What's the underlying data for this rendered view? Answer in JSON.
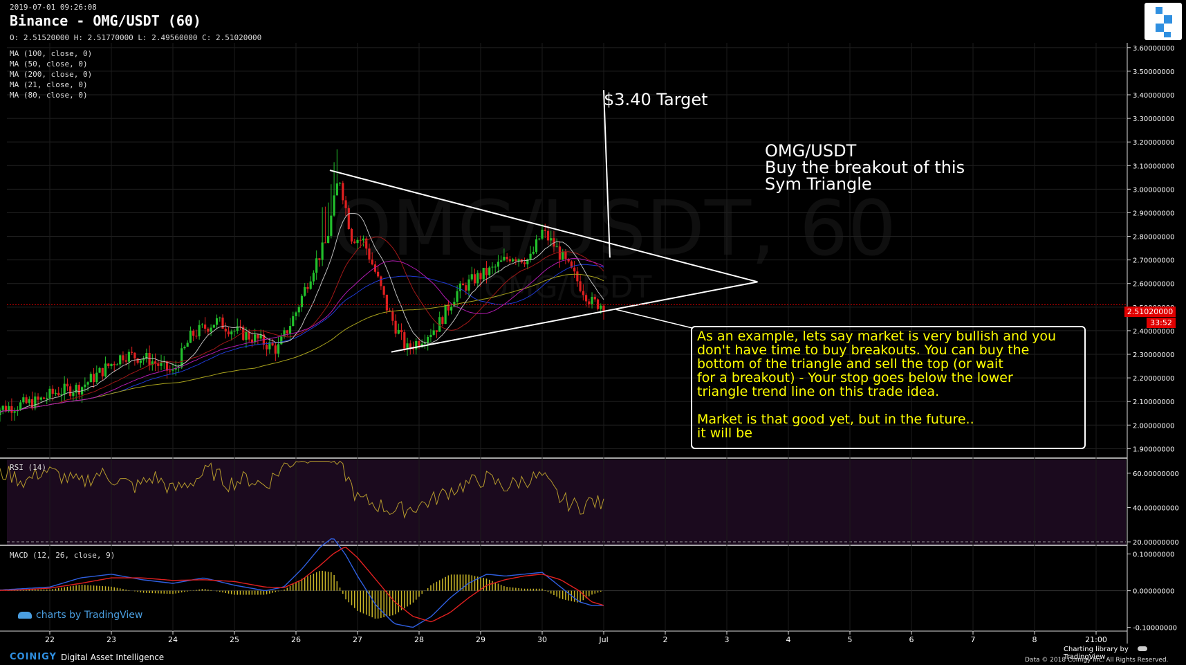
{
  "header": {
    "datetime": "2019-07-01 09:26:08",
    "title": "Binance - OMG/USDT (60)",
    "ohlc": "O: 2.51520000 H: 2.51770000 L: 2.49560000 C: 2.51020000"
  },
  "indicators": [
    "MA (100, close, 0)",
    "MA (50, close, 0)",
    "MA (200, close, 0)",
    "MA (21, close, 0)",
    "MA (80, close, 0)"
  ],
  "watermark": {
    "main": "OMG/USDT, 60",
    "sub": "OMG/USDT"
  },
  "annotations": {
    "target": "$3.40 Target",
    "idea": "OMG/USDT\nBuy the breakout of this\nSym Triangle",
    "note": "As an example, lets say market is very bullish and you\ndon't have time to buy breakouts.  You can buy the\n bottom of the triangle and sell the top (or wait\nfor a breakout) - Your stop goes below the lower\ntriangle trend line on this trade idea.\n\nMarket is that good yet, but in the future..\nit will be"
  },
  "last_price": "2.51020000",
  "countdown": "33:52",
  "rsi_label": "RSI (14)",
  "macd_label": "MACD (12, 26, close, 9)",
  "footer": {
    "brand": "COINIGY",
    "tagline": "Digital Asset Intelligence",
    "charting_library": "Charting library by",
    "tv_name": "TradingView",
    "tv_watermark": "charts by TradingView",
    "copyright": "Data © 2018   Coinigy Inc. All Rights Reserved."
  },
  "colors": {
    "background": "#000000",
    "up_candle": "#22c02c",
    "down_candle": "#e02020",
    "rsi_line": "#b59a2c",
    "macd_line": "#2f5fe0",
    "signal_line": "#e02020",
    "note_text": "#ffff00",
    "price_tag": "#e00000"
  },
  "chart_data": [
    {
      "type": "candlestick",
      "title": "Binance - OMG/USDT (60)",
      "x_tick_labels": [
        "22",
        "23",
        "24",
        "25",
        "26",
        "27",
        "28",
        "29",
        "30",
        "Jul",
        "2",
        "3",
        "4",
        "5",
        "6",
        "7",
        "8",
        "21:00"
      ],
      "y_tick_labels": [
        "1.90000000",
        "2.00000000",
        "2.10000000",
        "2.20000000",
        "2.30000000",
        "2.40000000",
        "2.50000000",
        "2.60000000",
        "2.70000000",
        "2.80000000",
        "2.90000000",
        "3.00000000",
        "3.10000000",
        "3.20000000",
        "3.30000000",
        "3.40000000",
        "3.50000000",
        "3.60000000"
      ],
      "ylim": [
        1.86,
        3.62
      ],
      "price_path_days": [
        21.0,
        21.4,
        21.8,
        22.1,
        22.5,
        22.9,
        23.2,
        23.6,
        24.0,
        24.3,
        24.7,
        25.0,
        25.4,
        25.7,
        26.0,
        26.3,
        26.5,
        26.7,
        26.9,
        27.1,
        27.3,
        27.5,
        27.8,
        28.0,
        28.3,
        28.6,
        28.9,
        29.2,
        29.5,
        29.8,
        30.0,
        30.2,
        30.4,
        30.6,
        30.8,
        31.0
      ],
      "price_path_values": [
        2.06,
        2.08,
        2.1,
        2.14,
        2.16,
        2.24,
        2.3,
        2.28,
        2.22,
        2.38,
        2.44,
        2.4,
        2.36,
        2.32,
        2.48,
        2.68,
        2.78,
        3.06,
        2.8,
        2.78,
        2.64,
        2.48,
        2.32,
        2.36,
        2.42,
        2.56,
        2.62,
        2.66,
        2.72,
        2.7,
        2.82,
        2.76,
        2.68,
        2.6,
        2.52,
        2.51
      ],
      "trend_lines": [
        {
          "name": "upper",
          "from": [
            26.55,
            3.08
          ],
          "to": [
            33.5,
            2.607
          ]
        },
        {
          "name": "lower",
          "from": [
            27.55,
            2.31
          ],
          "to": [
            33.5,
            2.607
          ]
        },
        {
          "name": "target",
          "from": [
            31.0,
            3.42
          ],
          "to": [
            31.1,
            2.71
          ]
        }
      ],
      "last_price": 2.5102
    },
    {
      "type": "line",
      "title": "RSI (14)",
      "y_tick_labels": [
        "20.00000000",
        "40.00000000",
        "60.00000000"
      ],
      "ylim": [
        18,
        68
      ],
      "x_days": [
        21.0,
        21.3,
        21.6,
        21.9,
        22.2,
        22.5,
        22.8,
        23.1,
        23.4,
        23.7,
        24.0,
        24.3,
        24.6,
        24.9,
        25.2,
        25.5,
        25.8,
        26.1,
        26.4,
        26.6,
        26.8,
        27.0,
        27.3,
        27.6,
        27.9,
        28.2,
        28.5,
        28.8,
        29.1,
        29.4,
        29.7,
        30.0,
        30.3,
        30.6,
        30.8,
        31.0
      ],
      "values": [
        57,
        60,
        55,
        62,
        58,
        54,
        60,
        56,
        52,
        58,
        50,
        55,
        62,
        54,
        57,
        53,
        64,
        70,
        72,
        68,
        60,
        45,
        42,
        38,
        40,
        44,
        50,
        54,
        57,
        52,
        56,
        58,
        45,
        40,
        44,
        41
      ]
    },
    {
      "type": "line",
      "title": "MACD (12, 26, close, 9)",
      "y_tick_labels": [
        "-0.10000000",
        "0.00000000",
        "0.10000000"
      ],
      "ylim": [
        -0.11,
        0.12
      ],
      "x_days": [
        21.0,
        21.5,
        22.0,
        22.5,
        23.0,
        23.5,
        24.0,
        24.5,
        25.0,
        25.5,
        25.8,
        26.1,
        26.4,
        26.6,
        26.8,
        27.0,
        27.3,
        27.6,
        27.9,
        28.2,
        28.5,
        28.8,
        29.1,
        29.4,
        29.7,
        30.0,
        30.3,
        30.6,
        30.8,
        31.0
      ],
      "macd": [
        0.0,
        0.005,
        0.01,
        0.035,
        0.045,
        0.03,
        0.02,
        0.035,
        0.015,
        0.0,
        0.01,
        0.06,
        0.12,
        0.145,
        0.1,
        0.04,
        -0.04,
        -0.09,
        -0.1,
        -0.07,
        -0.02,
        0.02,
        0.045,
        0.04,
        0.045,
        0.05,
        0.01,
        -0.03,
        -0.04,
        -0.04
      ],
      "signal": [
        0.0,
        0.002,
        0.007,
        0.02,
        0.035,
        0.035,
        0.028,
        0.03,
        0.025,
        0.01,
        0.008,
        0.03,
        0.07,
        0.1,
        0.12,
        0.09,
        0.03,
        -0.03,
        -0.07,
        -0.085,
        -0.06,
        -0.02,
        0.015,
        0.03,
        0.04,
        0.045,
        0.03,
        0.0,
        -0.03,
        -0.04
      ]
    }
  ]
}
